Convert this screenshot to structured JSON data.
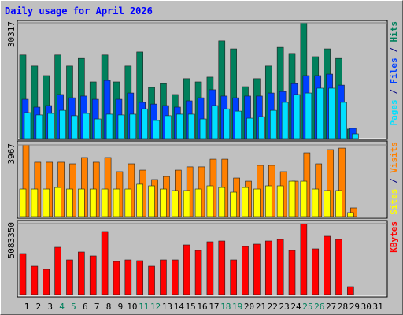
{
  "title": "Daily usage for April 2026",
  "legend_separator": " / ",
  "chart_data": [
    {
      "type": "bar",
      "ylim": [
        0,
        30317
      ],
      "yticks": [
        30317
      ],
      "series": [
        {
          "name": "Hits",
          "color": "#00805c",
          "values": [
            21900,
            19000,
            16500,
            21900,
            19000,
            21000,
            14850,
            21900,
            14850,
            19000,
            22700,
            13400,
            14400,
            11550,
            15700,
            14850,
            16100,
            25600,
            23500,
            13600,
            15700,
            19000,
            23900,
            22300,
            30317,
            21450,
            23500,
            21000,
            2500,
            null,
            null
          ]
        },
        {
          "name": "Files",
          "color": "#0040ff",
          "values": [
            10300,
            8250,
            8650,
            11550,
            10700,
            11150,
            10300,
            15250,
            10300,
            11950,
            9500,
            9050,
            8650,
            8250,
            9900,
            10700,
            12800,
            11150,
            10700,
            11150,
            11150,
            11950,
            12350,
            14400,
            16500,
            16500,
            16900,
            14000,
            2700,
            null,
            null
          ]
        },
        {
          "name": "Pages",
          "color": "#00e0ff",
          "values": [
            6800,
            6200,
            6600,
            7400,
            6000,
            6600,
            5150,
            6400,
            6200,
            6400,
            7800,
            4750,
            6000,
            6400,
            6400,
            5150,
            8650,
            7800,
            7200,
            5350,
            5750,
            7400,
            9500,
            11550,
            11950,
            13200,
            13200,
            9500,
            1240,
            null,
            null
          ]
        }
      ]
    },
    {
      "type": "bar",
      "ylim": [
        0,
        3967
      ],
      "yticks": [
        3967
      ],
      "series": [
        {
          "name": "Visits",
          "color": "#ff8000",
          "values": [
            3967,
            3010,
            3010,
            3010,
            2920,
            3270,
            3010,
            3270,
            2485,
            2920,
            2570,
            2050,
            2220,
            2570,
            2750,
            2750,
            3180,
            3180,
            2135,
            1960,
            2835,
            2835,
            2485,
            1960,
            3530,
            2920,
            3705,
            3790,
            480,
            null,
            null
          ]
        },
        {
          "name": "Sites",
          "color": "#ffff00",
          "values": [
            1525,
            1525,
            1525,
            1610,
            1525,
            1525,
            1525,
            1525,
            1525,
            1525,
            1790,
            1700,
            1525,
            1440,
            1440,
            1525,
            1700,
            1610,
            1350,
            1610,
            1525,
            1700,
            1700,
            1960,
            1960,
            1525,
            1440,
            1440,
            220,
            null,
            null
          ]
        }
      ]
    },
    {
      "type": "bar",
      "ylim": [
        0,
        5083350
      ],
      "yticks": [
        5083350
      ],
      "categories": [
        "1",
        "2",
        "3",
        "4",
        "5",
        "6",
        "7",
        "8",
        "9",
        "10",
        "11",
        "12",
        "13",
        "14",
        "15",
        "16",
        "17",
        "18",
        "19",
        "20",
        "21",
        "22",
        "23",
        "24",
        "25",
        "26",
        "27",
        "28",
        "29",
        "30",
        "31"
      ],
      "category_colors": [
        "#000000",
        "#000000",
        "#000000",
        "#00805c",
        "#00805c",
        "#000000",
        "#000000",
        "#000000",
        "#000000",
        "#000000",
        "#00805c",
        "#00805c",
        "#000000",
        "#000000",
        "#000000",
        "#000000",
        "#000000",
        "#00805c",
        "#00805c",
        "#000000",
        "#000000",
        "#000000",
        "#000000",
        "#000000",
        "#00805c",
        "#00805c",
        "#000000",
        "#000000",
        "#000000",
        "#000000",
        "#000000"
      ],
      "series": [
        {
          "name": "KBytes",
          "color": "#ff0000",
          "values": [
            2937000,
            2033000,
            1807000,
            3389000,
            2485000,
            3050000,
            2768000,
            4519000,
            2372000,
            2485000,
            2429000,
            2033000,
            2485000,
            2485000,
            3558000,
            3163000,
            3784000,
            3841000,
            2485000,
            3445000,
            3615000,
            3841000,
            3954000,
            3163000,
            5083350,
            3276000,
            4180000,
            3954000,
            565000,
            null,
            null
          ]
        }
      ]
    }
  ]
}
